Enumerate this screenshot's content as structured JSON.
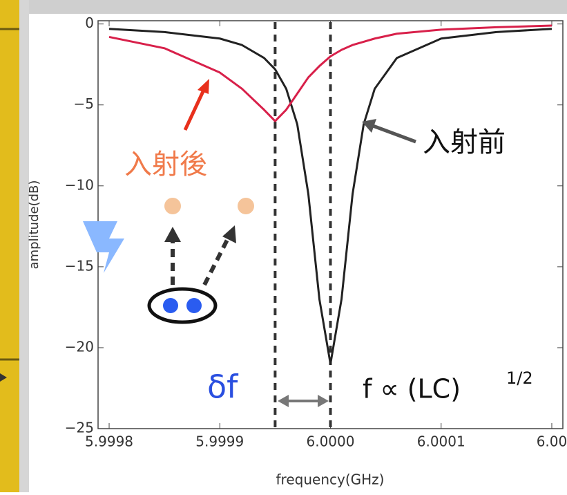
{
  "chart_data": {
    "type": "line",
    "x_label": "frequency(GHz)",
    "y_label": "amplitude(dB)",
    "x": [
      5.9998,
      5.99985,
      5.9999,
      5.99992,
      5.99994,
      5.99995,
      5.99996,
      5.99997,
      5.99998,
      5.99999,
      6.0,
      6.00001,
      6.00002,
      6.00003,
      6.00004,
      6.00006,
      6.0001,
      6.00015,
      6.0002
    ],
    "series": [
      {
        "name": "入射前",
        "color": "#222222",
        "values": [
          -0.3,
          -0.5,
          -0.9,
          -1.3,
          -2.1,
          -2.8,
          -4.0,
          -6.2,
          -10.5,
          -17,
          -21,
          -17,
          -10.5,
          -6.2,
          -4.0,
          -2.1,
          -0.9,
          -0.5,
          -0.3
        ]
      },
      {
        "name": "入射後",
        "color": "#d8204a",
        "values": [
          -0.8,
          -1.5,
          -3.0,
          -4.0,
          -5.3,
          -6.0,
          -5.3,
          -4.3,
          -3.3,
          -2.6,
          -2.0,
          -1.6,
          -1.3,
          -1.1,
          -0.9,
          -0.6,
          -0.35,
          -0.2,
          -0.1
        ]
      }
    ],
    "xlim": [
      5.99979,
      6.00021
    ],
    "ylim": [
      -25,
      0.2
    ],
    "xticks": [
      {
        "value": 5.9998,
        "label": "5.9998"
      },
      {
        "value": 5.9999,
        "label": "5.9999"
      },
      {
        "value": 6.0,
        "label": "6.0000"
      },
      {
        "value": 6.0001,
        "label": "6.0001"
      },
      {
        "value": 6.0002,
        "label": "6.00"
      }
    ],
    "yticks": [
      0,
      {
        "value": -5,
        "label": "−5"
      },
      {
        "value": -10,
        "label": "−10"
      },
      {
        "value": -15,
        "label": "−15"
      },
      {
        "value": -20,
        "label": "−20"
      },
      {
        "value": -25,
        "label": "−25"
      }
    ],
    "vlines": [
      5.99995,
      6.0
    ],
    "annotations": {
      "delta": "δf",
      "formula": "f ∝ (LC)",
      "exponent": "1/2"
    }
  }
}
